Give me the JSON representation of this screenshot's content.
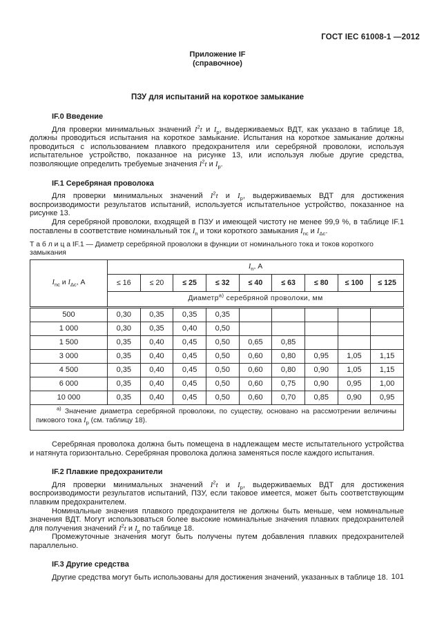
{
  "doc_header": "ГОСТ IEC 61008-1 —2012",
  "annex": {
    "label": "Приложение IF",
    "kind": "(справочное)"
  },
  "title": "ПЗУ для испытаний на короткое замыкание",
  "headings": {
    "if0": "IF.0 Введение",
    "if1": "IF.1 Серебряная проволока",
    "if2": "IF.2 Плавкие предохранители",
    "if3": "IF.3 Другие средства"
  },
  "paragraphs": {
    "p1": [
      {
        "t": "Для проверки минимальных значений "
      },
      {
        "t": "I",
        "f": "i"
      },
      {
        "t": "2",
        "f": "sup"
      },
      {
        "t": "t",
        "f": "i"
      },
      {
        "t": " и "
      },
      {
        "t": "I",
        "f": "i"
      },
      {
        "t": "p",
        "f": "sub"
      },
      {
        "t": ", выдерживаемых ВДТ, как указано в таблице 18, должны проводиться испытания на короткое замыкание. Испытания на короткое замыкание должны проводиться с использованием плавкого предохранителя или серебряной проволоки, используя испытательное устройство, показанное на рисунке 13, или используя любые другие средства, позволяющие определить требуемые значения "
      },
      {
        "t": "I",
        "f": "i"
      },
      {
        "t": "2",
        "f": "sup"
      },
      {
        "t": "t",
        "f": "i"
      },
      {
        "t": " и "
      },
      {
        "t": "I",
        "f": "i"
      },
      {
        "t": "p",
        "f": "sub"
      },
      {
        "t": "."
      }
    ],
    "p2": [
      {
        "t": "Для проверки минимальных значений "
      },
      {
        "t": "I",
        "f": "i"
      },
      {
        "t": "2",
        "f": "sup"
      },
      {
        "t": "t",
        "f": "i"
      },
      {
        "t": " и "
      },
      {
        "t": "I",
        "f": "i"
      },
      {
        "t": "p",
        "f": "sub"
      },
      {
        "t": ", выдерживаемых ВДТ для достижения воспроизводимости результатов испытаний, используется испытательное устройство, показанное на рисунке 13."
      }
    ],
    "p3": [
      {
        "t": "Для серебряной проволоки, входящей в ПЗУ и имеющей чистоту не менее 99,9 %, в таблице IF.1 поставлены в соответствие номинальный ток "
      },
      {
        "t": "I",
        "f": "i"
      },
      {
        "t": "n",
        "f": "sub"
      },
      {
        "t": " и токи короткого замыкания "
      },
      {
        "t": "I",
        "f": "i"
      },
      {
        "t": "nc",
        "f": "sub"
      },
      {
        "t": "  и "
      },
      {
        "t": "I",
        "f": "i"
      },
      {
        "t": "Δc",
        "f": "sub"
      },
      {
        "t": "."
      }
    ],
    "p4": [
      {
        "t": "Серебряная проволока должна быть помещена в надлежащем месте испытательного устройства и натянута горизонтально. Серебряная проволока должна заменяться после каждого испытания."
      }
    ],
    "p5": [
      {
        "t": "Для проверки минимальных значений "
      },
      {
        "t": "I",
        "f": "i"
      },
      {
        "t": "2",
        "f": "sup"
      },
      {
        "t": "t",
        "f": "i"
      },
      {
        "t": " и "
      },
      {
        "t": "I",
        "f": "i"
      },
      {
        "t": "p",
        "f": "sub"
      },
      {
        "t": ", выдерживаемых ВДТ для достижения воспроизводимости результатов испытаний, ПЗУ, если таковое имеется, может быть соответствующим плавким предохранителем."
      }
    ],
    "p6": [
      {
        "t": "Номинальные значения плавкого предохранителя не должны быть меньше, чем номинальные значения ВДТ. Могут использоваться более высокие номинальные значения плавких предохранителей для получения значений "
      },
      {
        "t": "I",
        "f": "i"
      },
      {
        "t": "2",
        "f": "sup"
      },
      {
        "t": "t",
        "f": "i"
      },
      {
        "t": " и "
      },
      {
        "t": "I",
        "f": "i"
      },
      {
        "t": "p",
        "f": "sub"
      },
      {
        "t": " по таблице 18."
      }
    ],
    "p7": [
      {
        "t": "Промежуточные значения могут быть получены путем добавления плавких предохранителей параллельно."
      }
    ],
    "p8": [
      {
        "t": "Другие средства могут быть использованы для достижения значений, указанных в таблице 18."
      }
    ]
  },
  "table_caption": "Т а б л и ц а  IF.1 — Диаметр серебряной проволоки в функции от номинального тока и токов  короткого замыкания",
  "table": {
    "corner": [
      {
        "t": "I",
        "f": "i"
      },
      {
        "t": "nc",
        "f": "sub"
      },
      {
        "t": " и "
      },
      {
        "t": "I",
        "f": "i"
      },
      {
        "t": "Δc",
        "f": "sub"
      },
      {
        "t": ", А"
      }
    ],
    "span_header": [
      {
        "t": "I",
        "f": "i"
      },
      {
        "t": "n",
        "f": "sub"
      },
      {
        "t": ", А"
      }
    ],
    "cols": [
      "≤ 16",
      "≤ 20",
      "≤ 25",
      "≤ 32",
      "≤ 40",
      "≤ 63",
      "≤ 80",
      "≤ 100",
      "≤ 125"
    ],
    "subheader": [
      {
        "t": "Диаметр"
      },
      {
        "t": "а)",
        "f": "sup"
      },
      {
        "t": " серебряной проволоки, мм"
      }
    ],
    "rows": [
      [
        "500",
        "0,30",
        "0,35",
        "0,35",
        "0,35",
        "",
        "",
        "",
        "",
        ""
      ],
      [
        "1 000",
        "0,30",
        "0,35",
        "0,40",
        "0,50",
        "",
        "",
        "",
        "",
        ""
      ],
      [
        "1 500",
        "0,35",
        "0,40",
        "0,45",
        "0,50",
        "0,65",
        "0,85",
        "",
        "",
        ""
      ],
      [
        "3 000",
        "0,35",
        "0,40",
        "0,45",
        "0,50",
        "0,60",
        "0,80",
        "0,95",
        "1,05",
        "1,15"
      ],
      [
        "4 500",
        "0,35",
        "0,40",
        "0,45",
        "0,50",
        "0,60",
        "0,80",
        "0,90",
        "1,05",
        "1,15"
      ],
      [
        "6 000",
        "0,35",
        "0,40",
        "0,45",
        "0,50",
        "0,60",
        "0,75",
        "0,90",
        "0,95",
        "1,00"
      ],
      [
        "10 000",
        "0,35",
        "0,40",
        "0,45",
        "0,50",
        "0,60",
        "0,70",
        "0,85",
        "0,90",
        "0,95"
      ]
    ],
    "footnote": [
      {
        "t": "а)",
        "f": "sup"
      },
      {
        "t": " Значение диаметра серебряной проволоки, по существу, основано на рассмотрении величины пикового тока "
      },
      {
        "t": "I",
        "f": "i"
      },
      {
        "t": "p",
        "f": "sub"
      },
      {
        "t": " (см. таблицу 18)."
      }
    ]
  },
  "page_number": "101"
}
